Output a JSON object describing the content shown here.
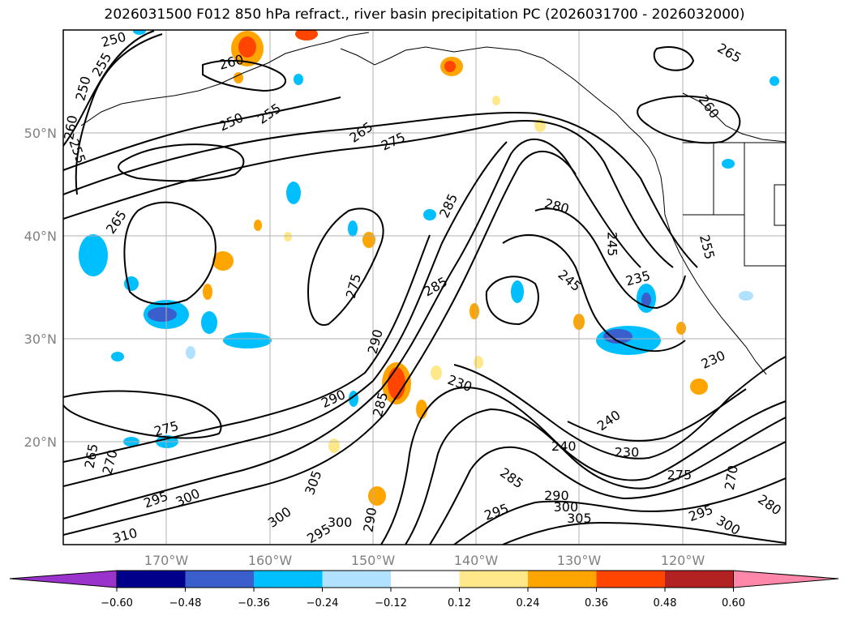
{
  "title": "2026031500 F012 850 hPa refract., river basin precipitation PC (2026031700 - 2026032000)",
  "map": {
    "lon_range": [
      -180,
      -110
    ],
    "lat_range": [
      10,
      60
    ],
    "lat_ticks": [
      {
        "value": 20,
        "label": "20°N"
      },
      {
        "value": 30,
        "label": "30°N"
      },
      {
        "value": 40,
        "label": "40°N"
      },
      {
        "value": 50,
        "label": "50°N"
      }
    ],
    "lon_ticks": [
      {
        "value": -170,
        "label": "170°W"
      },
      {
        "value": -160,
        "label": "160°W"
      },
      {
        "value": -150,
        "label": "150°W"
      },
      {
        "value": -140,
        "label": "140°W"
      },
      {
        "value": -130,
        "label": "130°W"
      },
      {
        "value": -120,
        "label": "120°W"
      }
    ],
    "grid": true,
    "contour_labels": [
      {
        "text": "250",
        "lon": -175.1,
        "lat": 59.0,
        "angle": -15
      },
      {
        "text": "255",
        "lon": -176.2,
        "lat": 56.6,
        "angle": -60
      },
      {
        "text": "250",
        "lon": -178.0,
        "lat": 54.3,
        "angle": -75
      },
      {
        "text": "260",
        "lon": -179.2,
        "lat": 50.5,
        "angle": -80
      },
      {
        "text": "255",
        "lon": -178.7,
        "lat": 48.2,
        "angle": 70
      },
      {
        "text": "260",
        "lon": -163.7,
        "lat": 56.8,
        "angle": -15
      },
      {
        "text": "250",
        "lon": -163.7,
        "lat": 51.0,
        "angle": -25
      },
      {
        "text": "255",
        "lon": -160.0,
        "lat": 51.8,
        "angle": -35
      },
      {
        "text": "265",
        "lon": -174.8,
        "lat": 41.3,
        "angle": -55
      },
      {
        "text": "265",
        "lon": -151.1,
        "lat": 50.0,
        "angle": -35
      },
      {
        "text": "275",
        "lon": -148.0,
        "lat": 49.1,
        "angle": -25
      },
      {
        "text": "285",
        "lon": -142.6,
        "lat": 42.9,
        "angle": -65
      },
      {
        "text": "275",
        "lon": -151.8,
        "lat": 35.1,
        "angle": -75
      },
      {
        "text": "290",
        "lon": -149.7,
        "lat": 29.7,
        "angle": -75
      },
      {
        "text": "285",
        "lon": -143.9,
        "lat": 35.0,
        "angle": -30
      },
      {
        "text": "280",
        "lon": -132.2,
        "lat": 42.8,
        "angle": 15
      },
      {
        "text": "245",
        "lon": -131.0,
        "lat": 35.6,
        "angle": 40
      },
      {
        "text": "245",
        "lon": -126.9,
        "lat": 39.2,
        "angle": 90
      },
      {
        "text": "235",
        "lon": -124.3,
        "lat": 35.8,
        "angle": -15
      },
      {
        "text": "255",
        "lon": -117.7,
        "lat": 38.9,
        "angle": 75
      },
      {
        "text": "230",
        "lon": -117.0,
        "lat": 27.9,
        "angle": -25
      },
      {
        "text": "230",
        "lon": -141.6,
        "lat": 25.6,
        "angle": 20
      },
      {
        "text": "240",
        "lon": -127.1,
        "lat": 22.0,
        "angle": -35
      },
      {
        "text": "240",
        "lon": -131.5,
        "lat": 19.5,
        "angle": 0
      },
      {
        "text": "230",
        "lon": -125.4,
        "lat": 18.9,
        "angle": 0
      },
      {
        "text": "285",
        "lon": -136.6,
        "lat": 16.4,
        "angle": 35
      },
      {
        "text": "275",
        "lon": -120.3,
        "lat": 16.7,
        "angle": 0
      },
      {
        "text": "270",
        "lon": -115.2,
        "lat": 16.5,
        "angle": -80
      },
      {
        "text": "280",
        "lon": -111.6,
        "lat": 13.8,
        "angle": 35
      },
      {
        "text": "295",
        "lon": -118.2,
        "lat": 13.0,
        "angle": -20
      },
      {
        "text": "300",
        "lon": -115.6,
        "lat": 11.8,
        "angle": 30
      },
      {
        "text": "290",
        "lon": -132.2,
        "lat": 14.7,
        "angle": 0
      },
      {
        "text": "300",
        "lon": -131.3,
        "lat": 13.6,
        "angle": 0
      },
      {
        "text": "305",
        "lon": -130.0,
        "lat": 12.5,
        "angle": 0
      },
      {
        "text": "295",
        "lon": -138.0,
        "lat": 13.1,
        "angle": -20
      },
      {
        "text": "275",
        "lon": -170.0,
        "lat": 21.2,
        "angle": -15
      },
      {
        "text": "265",
        "lon": -177.2,
        "lat": 18.6,
        "angle": -80
      },
      {
        "text": "270",
        "lon": -175.4,
        "lat": 18.0,
        "angle": -75
      },
      {
        "text": "295",
        "lon": -171.0,
        "lat": 14.3,
        "angle": -20
      },
      {
        "text": "300",
        "lon": -167.9,
        "lat": 14.5,
        "angle": -25
      },
      {
        "text": "310",
        "lon": -174.0,
        "lat": 10.8,
        "angle": -15
      },
      {
        "text": "305",
        "lon": -155.7,
        "lat": 16.0,
        "angle": -70
      },
      {
        "text": "300",
        "lon": -159.0,
        "lat": 12.6,
        "angle": -35
      },
      {
        "text": "300",
        "lon": -153.2,
        "lat": 12.1,
        "angle": 0
      },
      {
        "text": "295",
        "lon": -155.2,
        "lat": 11.0,
        "angle": -30
      },
      {
        "text": "290",
        "lon": -150.2,
        "lat": 12.4,
        "angle": -80
      },
      {
        "text": "290",
        "lon": -153.8,
        "lat": 24.1,
        "angle": -25
      },
      {
        "text": "285",
        "lon": -149.2,
        "lat": 23.6,
        "angle": -75
      },
      {
        "text": "265",
        "lon": -115.5,
        "lat": 57.7,
        "angle": 30
      },
      {
        "text": "260",
        "lon": -117.5,
        "lat": 52.5,
        "angle": 55
      }
    ]
  },
  "colorbar": {
    "ticks": [
      "−0.60",
      "−0.48",
      "−0.36",
      "−0.24",
      "−0.12",
      "0.12",
      "0.24",
      "0.36",
      "0.48",
      "0.60"
    ],
    "colors": [
      "#9933cc",
      "#00008b",
      "#3a5fcd",
      "#00bfff",
      "#b0e2ff",
      "#ffffff",
      "#ffe88a",
      "#ffa500",
      "#ff4500",
      "#b22222",
      "#ff88aa"
    ]
  },
  "colors": {
    "land_line": "#000000",
    "grid": "#b0b0b0",
    "tick_label": "#808080"
  }
}
